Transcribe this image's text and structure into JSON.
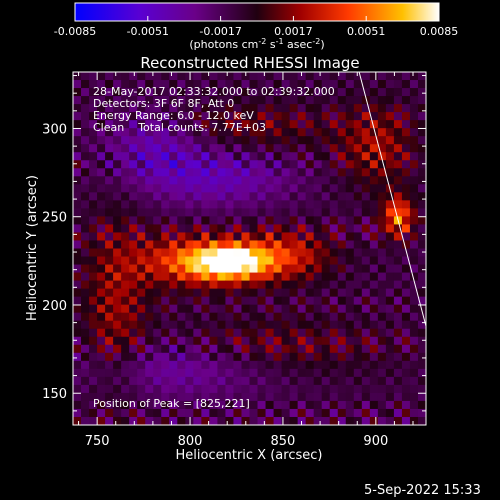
{
  "chart_data": {
    "type": "heatmap",
    "title": "Reconstructed RHESSI Image",
    "xlabel": "Heliocentric X (arcsec)",
    "ylabel": "Heliocentric Y (arcsec)",
    "xlim": [
      737,
      927
    ],
    "ylim": [
      132,
      332
    ],
    "xticks": [
      750,
      800,
      850,
      900
    ],
    "yticks": [
      150,
      200,
      250,
      300
    ],
    "colorbar": {
      "range": [
        -0.0085,
        0.0085
      ],
      "ticks": [
        "-0.0085",
        "-0.0051",
        "-0.0017",
        "0.0017",
        "0.0051",
        "0.0085"
      ],
      "label_parts": [
        "(photons cm",
        "-2",
        " s",
        "-1",
        " asec",
        "-2",
        ")"
      ]
    },
    "annotations": [
      "28-May-2017 02:33:32.000 to 02:39:32.000",
      "Detectors: 3F 6F 8F, Att 0",
      "Energy Range: 6.0 - 12.0 keV",
      "Clean    Total counts: 7.77E+03"
    ],
    "peak_label": "Position of Peak = [825,221]",
    "peak": {
      "x": 825,
      "y": 221,
      "value": 0.0085
    },
    "sources": [
      {
        "x": 822,
        "y": 224,
        "sx": 14,
        "sy": 7,
        "amp": 0.0085
      },
      {
        "x": 800,
        "y": 225,
        "sx": 20,
        "sy": 10,
        "amp": 0.0055
      },
      {
        "x": 850,
        "y": 228,
        "sx": 18,
        "sy": 10,
        "amp": 0.0045
      },
      {
        "x": 912,
        "y": 250,
        "sx": 6,
        "sy": 8,
        "amp": 0.0062
      },
      {
        "x": 900,
        "y": 290,
        "sx": 14,
        "sy": 16,
        "amp": 0.0032
      },
      {
        "x": 760,
        "y": 200,
        "sx": 12,
        "sy": 35,
        "amp": 0.003
      },
      {
        "x": 840,
        "y": 175,
        "sx": 40,
        "sy": 12,
        "amp": 0.0022
      },
      {
        "x": 835,
        "y": 300,
        "sx": 30,
        "sy": 10,
        "amp": 0.002
      },
      {
        "x": 795,
        "y": 165,
        "sx": 40,
        "sy": 12,
        "amp": -0.0028
      },
      {
        "x": 815,
        "y": 273,
        "sx": 28,
        "sy": 12,
        "amp": -0.003
      },
      {
        "x": 780,
        "y": 290,
        "sx": 18,
        "sy": 14,
        "amp": -0.0026
      }
    ],
    "limb_line": [
      {
        "x": 891,
        "y": 332
      },
      {
        "x": 927,
        "y": 188
      }
    ],
    "grid": false
  },
  "timestamp": "5-Sep-2022 15:33"
}
